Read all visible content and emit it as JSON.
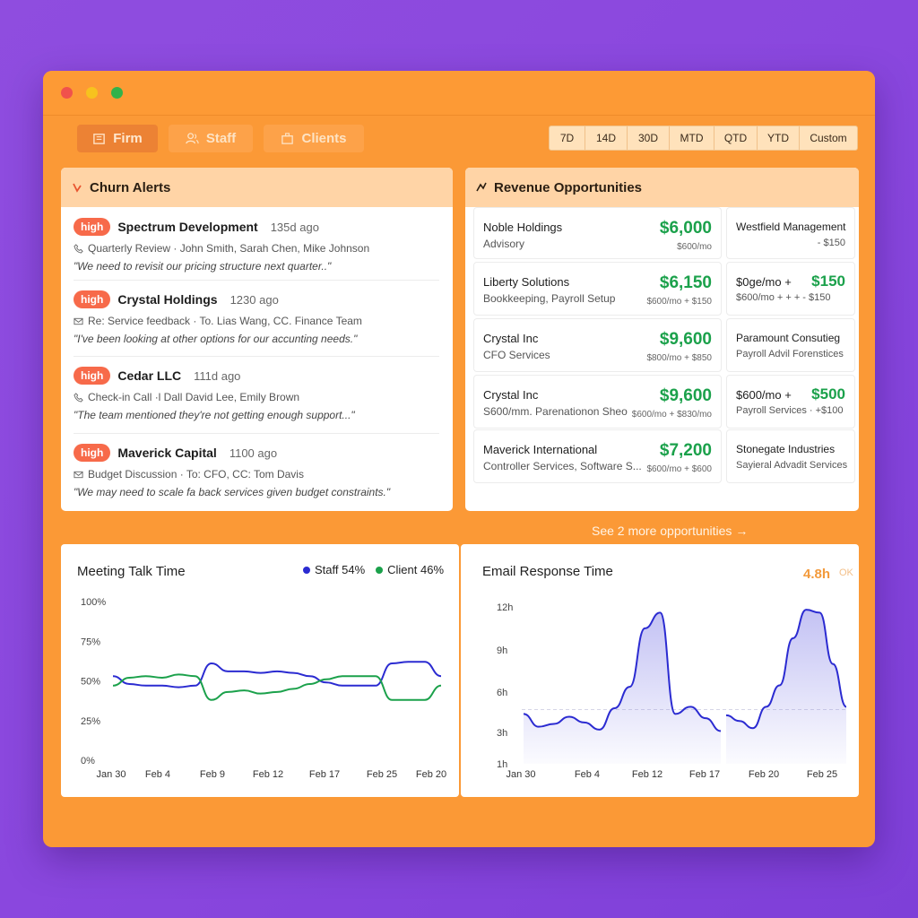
{
  "nav": {
    "tabs": [
      {
        "label": "Firm",
        "icon": "building-icon",
        "active": true
      },
      {
        "label": "Staff",
        "icon": "users-icon",
        "active": false
      },
      {
        "label": "Clients",
        "icon": "briefcase-icon",
        "active": false
      }
    ]
  },
  "ranges": [
    "7D",
    "14D",
    "30D",
    "MTD",
    "QTD",
    "YTD",
    "Custom"
  ],
  "churn": {
    "title": "Churn Alerts",
    "alerts": [
      {
        "badge": "high",
        "name": "Spectrum Development",
        "age": "135d ago",
        "meta_icon": "phone-icon",
        "meta": "Quarterly Review · John Smith, Sarah Chen, Mike Johnson",
        "quote": "\"We need to revisit our pricing structure next quarter..\""
      },
      {
        "badge": "high",
        "name": "Crystal Holdings",
        "age": "1230 ago",
        "meta_icon": "mail-icon",
        "meta": "Re: Service feedback · To. Lias Wang, CC. Finance Team",
        "quote": "\"I've been looking at other options for our accunting needs.\""
      },
      {
        "badge": "high",
        "name": "Cedar LLC",
        "age": "111d ago",
        "meta_icon": "phone-icon",
        "meta": "Check-in Call ·l Dall David Lee, Emily Brown",
        "quote": "\"The team mentioned they're not getting enough support...\""
      },
      {
        "badge": "high",
        "name": "Maverick Capital",
        "age": "1100 ago",
        "meta_icon": "mail-icon",
        "meta": "Budget Discussion · To: CFO, CC: Tom Davis",
        "quote": "\"We may need to scale fa back services given budget constraints.\""
      }
    ]
  },
  "revenue": {
    "title": "Revenue Opportunities",
    "main": [
      {
        "name": "Noble Holdings",
        "sub": "Advisory",
        "amount": "$6,000",
        "detail": "$600/mo"
      },
      {
        "name": "Liberty Solutions",
        "sub": "Bookkeeping, Payroll Setup",
        "amount": "$6,150",
        "detail": "$600/mo + $150"
      },
      {
        "name": "Crystal Inc",
        "sub": "CFO Services",
        "amount": "$9,600",
        "detail": "$800/mo + $850"
      },
      {
        "name": "Crystal Inc",
        "sub": "S600/mm. Parenationon Sheo",
        "amount": "$9,600",
        "detail": "$600/mo + $830/mo"
      },
      {
        "name": "Maverick International",
        "sub": "Controller Services, Software S...",
        "amount": "$7,200",
        "detail": "$600/mo + $600"
      }
    ],
    "side": [
      {
        "name": "Westfield Management",
        "sub": "- $150",
        "amount": "",
        "detail": ""
      },
      {
        "name": "$0ge/mo +",
        "sub": "$600/mo + + + - $150",
        "amount": "$150",
        "detail": ""
      },
      {
        "name": "Paramount Consutieg",
        "sub": "Payroll Advil Forenstices",
        "amount": "",
        "detail": ""
      },
      {
        "name": "$600/mo +",
        "sub": "Payroll Services · +$100",
        "amount": "$500",
        "detail": ""
      },
      {
        "name": "Stonegate Industries",
        "sub": "Sayieral Advadit Services",
        "amount": "",
        "detail": ""
      }
    ],
    "see_more": "See 2 more opportunities →"
  },
  "meeting": {
    "title": "Meeting Talk Time",
    "legend": [
      {
        "label": "Staff 54%",
        "color": "#2b2bd1"
      },
      {
        "label": "Client 46%",
        "color": "#1ba14b"
      }
    ]
  },
  "email": {
    "title": "Email Response Time",
    "stat": "4.8h",
    "stat_note": "OK"
  },
  "chart_data": [
    {
      "type": "line",
      "title": "Meeting Talk Time",
      "y_ticks": [
        "100%",
        "75%",
        "50%",
        "25%",
        "0%"
      ],
      "x_ticks": [
        "Jan 30",
        "Feb 4",
        "Feb 9",
        "Feb 12",
        "Feb 17",
        "Feb 25",
        "Feb 20"
      ],
      "ylim": [
        0,
        100
      ],
      "series": [
        {
          "name": "Staff 54%",
          "color": "#2b2bd1",
          "values": [
            53,
            48,
            47,
            47,
            46,
            47,
            61,
            56,
            56,
            55,
            56,
            55,
            53,
            49,
            47,
            47,
            47,
            61,
            62,
            62,
            53
          ]
        },
        {
          "name": "Client 46%",
          "color": "#1ba14b",
          "values": [
            47,
            52,
            53,
            52,
            54,
            53,
            38,
            43,
            44,
            42,
            43,
            45,
            48,
            51,
            53,
            53,
            53,
            38,
            38,
            38,
            47
          ]
        }
      ]
    },
    {
      "type": "area",
      "title": "Email Response Time",
      "y_ticks": [
        "12h",
        "9h",
        "6h",
        "3h",
        "1h"
      ],
      "x_ticks": [
        "Jan 30",
        "Feb 4",
        "Feb 12",
        "Feb 17",
        "Feb 20",
        "Feb 25"
      ],
      "ylim": [
        1,
        12
      ],
      "reference_line": 4.8,
      "segments": [
        {
          "values": [
            4.5,
            3.6,
            3.8,
            4.3,
            3.9,
            3.4,
            4.9,
            6.4,
            10.5,
            11.6,
            4.5,
            5.0,
            4.2,
            3.3
          ]
        },
        {
          "values": [
            4.4,
            4.0,
            3.5,
            5.0,
            6.5,
            9.8,
            11.8,
            11.6,
            8.0,
            5.0
          ]
        }
      ]
    }
  ]
}
